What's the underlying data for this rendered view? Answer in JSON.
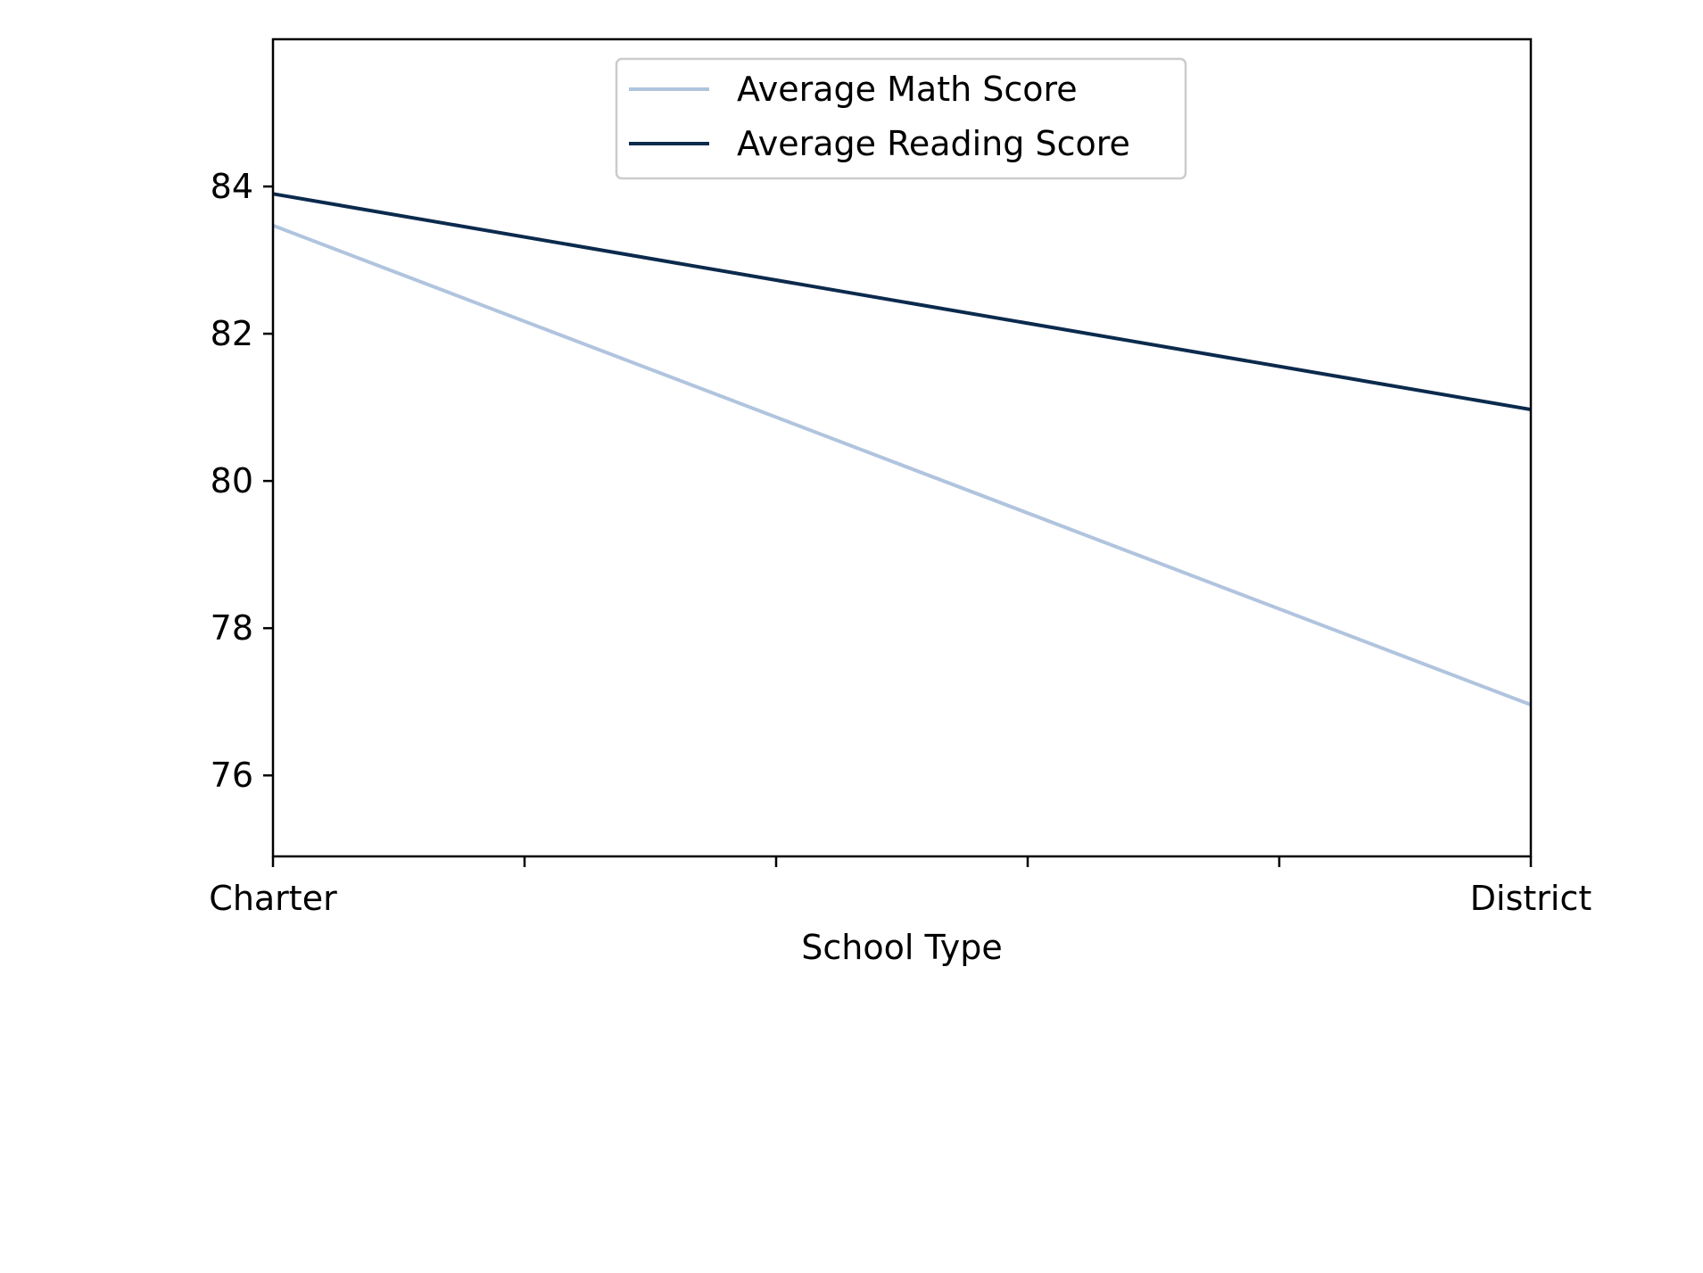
{
  "chart_data": {
    "type": "line",
    "title": "",
    "xlabel": "School Type",
    "ylabel": "",
    "categories": [
      "Charter",
      "District"
    ],
    "x": [
      0,
      1
    ],
    "ylim": [
      74.9,
      86.0
    ],
    "yticks": [
      76,
      78,
      80,
      82,
      84
    ],
    "xminor_ticks": 4,
    "grid": false,
    "legend_position": "upper center",
    "series": [
      {
        "name": "Average Math Score",
        "color": "#b0c4de",
        "values": [
          83.47,
          76.96
        ]
      },
      {
        "name": "Average Reading Score",
        "color": "#0b2a4d",
        "values": [
          83.9,
          80.97
        ]
      }
    ]
  }
}
